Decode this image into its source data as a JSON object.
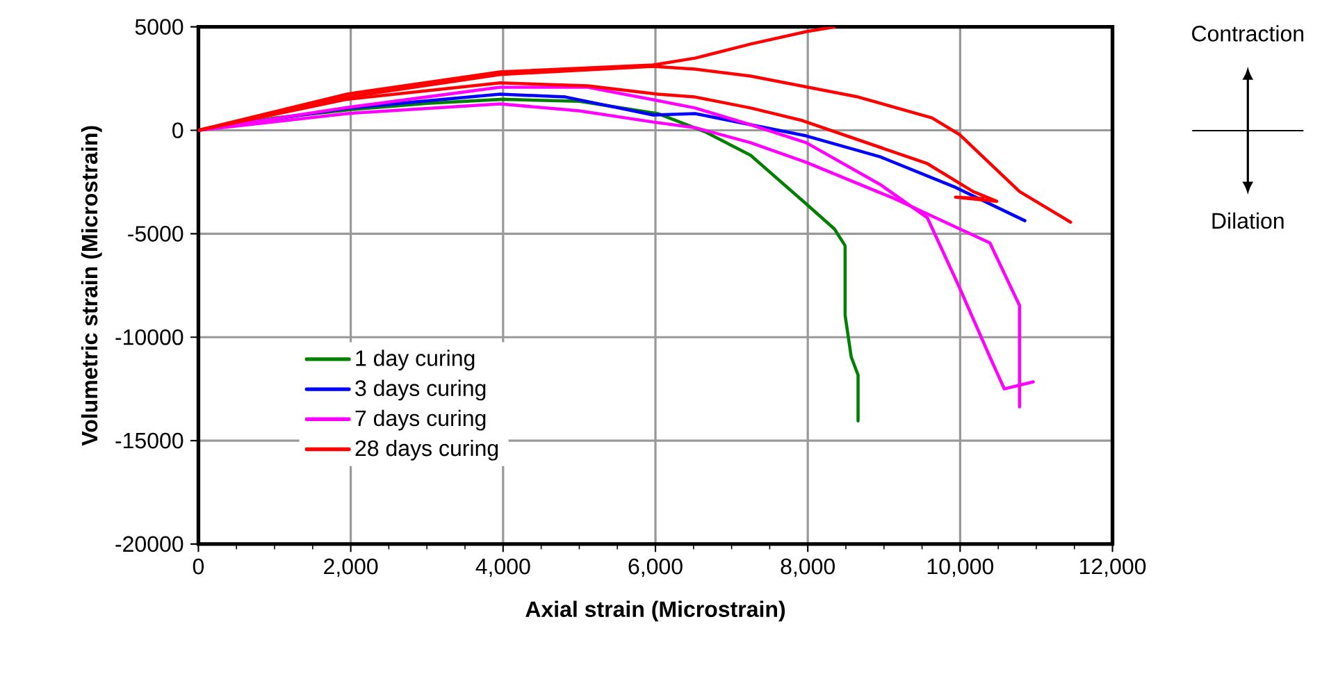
{
  "chart_data": {
    "type": "line",
    "xlabel": "Axial strain (Microstrain)",
    "ylabel": "Volumetric strain  (Microstrain)",
    "xlim": [
      0,
      12000
    ],
    "ylim": [
      -20000,
      5000
    ],
    "xticks": [
      0,
      {
        "value": 2000,
        "label": "2,000"
      },
      {
        "value": 4000,
        "label": "4,000"
      },
      {
        "value": 6000,
        "label": "6,000"
      },
      {
        "value": 8000,
        "label": "8,000"
      },
      {
        "value": 10000,
        "label": "10,000"
      },
      {
        "value": 12000,
        "label": "12,000"
      }
    ],
    "yticks": [
      -20000,
      -15000,
      -10000,
      -5000,
      0,
      5000
    ],
    "grid": true,
    "legend": "bottom left",
    "marker": "none",
    "line_style": "solid",
    "annotations": [
      "Contraction",
      "Dilation"
    ],
    "series": [
      {
        "name": "1 day curing",
        "color": "#008000",
        "x": [
          0,
          1000,
          2000,
          3000,
          4000,
          5000,
          6030,
          6650,
          7250,
          7980,
          8350,
          8490,
          8490,
          8570,
          8660,
          8660
        ],
        "values": [
          0,
          600,
          1000,
          1300,
          1500,
          1400,
          810,
          -70,
          -1210,
          -3560,
          -4770,
          -5580,
          -8940,
          -10950,
          -11830,
          -14050
        ]
      },
      {
        "name": "3 days curing",
        "color": "#0000ff",
        "x": [
          0,
          1950,
          3960,
          4820,
          5970,
          6520,
          7250,
          7980,
          8950,
          9940,
          10850
        ],
        "values": [
          0,
          1070,
          1750,
          1610,
          740,
          810,
          270,
          -270,
          -1280,
          -2760,
          -4370
        ]
      },
      {
        "name": "7 days curing",
        "color": "#ff00ff",
        "x": [
          0,
          1950,
          3960,
          5110,
          5970,
          6520,
          7250,
          7980,
          8950,
          9570,
          9990,
          10390,
          10580,
          10960
        ],
        "values": [
          0,
          1100,
          2080,
          2080,
          1480,
          1080,
          270,
          -600,
          -2620,
          -4230,
          -7590,
          -10950,
          -12500,
          -12160
        ]
      },
      {
        "color": "#ff00ff",
        "x": [
          0,
          1950,
          3960,
          5000,
          5970,
          6520,
          7250,
          7980,
          9130,
          10390,
          10780,
          10780
        ],
        "values": [
          0,
          810,
          1280,
          940,
          400,
          130,
          -600,
          -1550,
          -3290,
          -5440,
          -8470,
          -13370
        ]
      },
      {
        "name": "28 days curing",
        "color": "#ff0000",
        "x": [
          0,
          1950,
          3960,
          5970,
          6520,
          7250,
          7980,
          8350
        ],
        "values": [
          0,
          1750,
          2820,
          3160,
          3490,
          4170,
          4770,
          5000
        ]
      },
      {
        "color": "#ff0000",
        "x": [
          0,
          1950,
          3960,
          5970,
          6520,
          7250,
          8660,
          9630,
          9990,
          10780,
          11450
        ],
        "values": [
          0,
          1600,
          2700,
          3090,
          2960,
          2620,
          1610,
          600,
          -200,
          -2960,
          -4440
        ]
      },
      {
        "color": "#ff0000",
        "x": [
          0,
          1950,
          3960,
          5110,
          6030,
          6520,
          7250,
          7930,
          9570,
          10170,
          10480,
          9940,
          10300
        ],
        "values": [
          0,
          1500,
          2290,
          2150,
          1750,
          1610,
          1080,
          470,
          -1610,
          -2960,
          -3430,
          -3230,
          -3300
        ]
      }
    ]
  }
}
